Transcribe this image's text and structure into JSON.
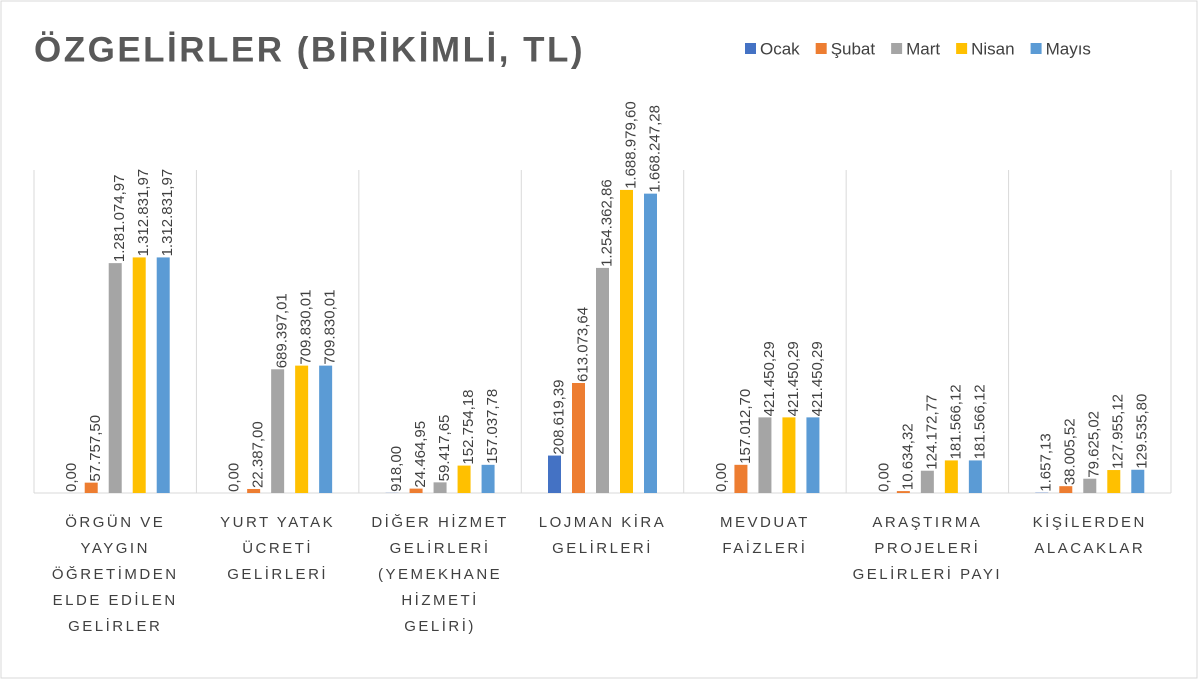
{
  "chart_data": {
    "type": "bar",
    "title": "ÖZGELİRLER (BİRİKİMLİ, TL)",
    "categories": [
      "ÖRGÜN VE YAYGIN ÖĞRETİMDEN ELDE EDİLEN GELİRLER",
      "YURT YATAK ÜCRETİ GELİRLERİ",
      "DİĞER HİZMET GELİRLERİ (YEMEKHANE HİZMETİ GELİRİ)",
      "LOJMAN KİRA GELİRLERİ",
      "MEVDUAT FAİZLERİ",
      "ARAŞTIRMA PROJELERİ GELİRLERİ PAYI",
      "KİŞİLERDEN ALACAKLAR"
    ],
    "series": [
      {
        "name": "Ocak",
        "color": "#4472c4",
        "values": [
          0,
          0,
          918,
          208619.39,
          0,
          0,
          1657.13
        ],
        "value_labels": [
          "0,00",
          "0,00",
          "918,00",
          "208.619,39",
          "0,00",
          "0,00",
          "1.657,13"
        ]
      },
      {
        "name": "Şubat",
        "color": "#ed7d31",
        "values": [
          57757.5,
          22387,
          24464.95,
          613073.64,
          157012.7,
          10634.32,
          38005.52
        ],
        "value_labels": [
          "57.757,50",
          "22.387,00",
          "24.464,95",
          "613.073,64",
          "157.012,70",
          "10.634,32",
          "38.005,52"
        ]
      },
      {
        "name": "Mart",
        "color": "#a5a5a5",
        "values": [
          1281074.97,
          689397.01,
          59417.65,
          1254362.86,
          421450.29,
          124172.77,
          79625.02
        ],
        "value_labels": [
          "1.281.074,97",
          "689.397,01",
          "59.417,65",
          "1.254.362,86",
          "421.450,29",
          "124.172,77",
          "79.625,02"
        ]
      },
      {
        "name": "Nisan",
        "color": "#ffc000",
        "values": [
          1312831.97,
          709830.01,
          152754.18,
          1688979.6,
          421450.29,
          181566.12,
          127955.12
        ],
        "value_labels": [
          "1.312.831,97",
          "709.830,01",
          "152.754,18",
          "1.688.979,60",
          "421.450,29",
          "181.566,12",
          "127.955,12"
        ]
      },
      {
        "name": "Mayıs",
        "color": "#5b9bd5",
        "values": [
          1312831.97,
          709830.01,
          157037.78,
          1668247.28,
          421450.29,
          181566.12,
          129535.8
        ],
        "value_labels": [
          "1.312.831,97",
          "709.830,01",
          "157.037,78",
          "1.668.247,28",
          "421.450,29",
          "181.566,12",
          "129.535,80"
        ]
      }
    ],
    "ylim": [
      0,
      1800000
    ],
    "legend": "top-right"
  }
}
